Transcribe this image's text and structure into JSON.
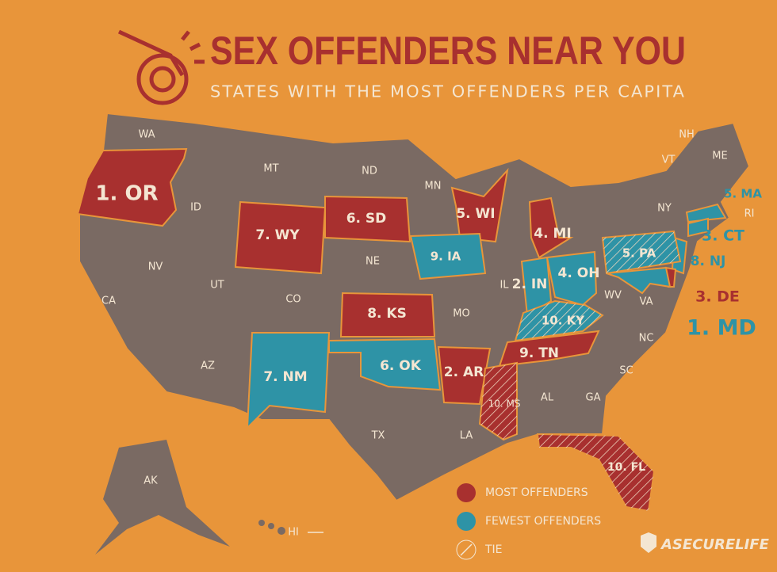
{
  "header": {
    "title": "SEX OFFENDERS NEAR YOU",
    "subtitle": "STATES WITH THE MOST OFFENDERS PER CAPITA"
  },
  "states": [
    {
      "label": "WA"
    },
    {
      "label": "1. OR",
      "color": "#a8302f"
    },
    {
      "label": "ID"
    },
    {
      "label": "MT"
    },
    {
      "label": "ND"
    },
    {
      "label": "MN"
    },
    {
      "label": "5. WI",
      "color": "#a8302f"
    },
    {
      "label": "4. MI",
      "color": "#a8302f"
    },
    {
      "label": "NY"
    },
    {
      "label": "VT"
    },
    {
      "label": "NH"
    },
    {
      "label": "ME"
    },
    {
      "label": "5. MA",
      "color": "#2e93a6"
    },
    {
      "label": "RI"
    },
    {
      "label": "3. CT",
      "color": "#2e93a6"
    },
    {
      "label": "8. NJ",
      "color": "#2e93a6"
    },
    {
      "label": "3. DE",
      "color": "#a8302f"
    },
    {
      "label": "1. MD",
      "color": "#2e93a6"
    },
    {
      "label": "5. PA",
      "color": "#2e93a6",
      "hatched": true
    },
    {
      "label": "4. OH",
      "color": "#2e93a6"
    },
    {
      "label": "2. IN",
      "color": "#2e93a6"
    },
    {
      "label": "9. IA",
      "color": "#2e93a6"
    },
    {
      "label": "7. WY",
      "color": "#a8302f"
    },
    {
      "label": "6. SD",
      "color": "#a8302f"
    },
    {
      "label": "NE"
    },
    {
      "label": "NV"
    },
    {
      "label": "CA"
    },
    {
      "label": "UT"
    },
    {
      "label": "CO"
    },
    {
      "label": "8. KS",
      "color": "#a8302f"
    },
    {
      "label": "MO"
    },
    {
      "label": "IL"
    },
    {
      "label": "10. KY",
      "color": "#2e93a6",
      "hatched": true
    },
    {
      "label": "WV"
    },
    {
      "label": "VA"
    },
    {
      "label": "NC"
    },
    {
      "label": "9. TN",
      "color": "#a8302f"
    },
    {
      "label": "6. OK",
      "color": "#2e93a6"
    },
    {
      "label": "2. AR",
      "color": "#a8302f"
    },
    {
      "label": "AZ"
    },
    {
      "label": "7. NM",
      "color": "#2e93a6"
    },
    {
      "label": "TX"
    },
    {
      "label": "LA"
    },
    {
      "label": "10. MS",
      "color": "#a8302f",
      "hatched": true
    },
    {
      "label": "AL"
    },
    {
      "label": "GA"
    },
    {
      "label": "SC"
    },
    {
      "label": "10. FL",
      "color": "#a8302f",
      "hatched": true
    },
    {
      "label": "AK"
    },
    {
      "label": "HI"
    }
  ],
  "legend": [
    {
      "label": "MOST OFFENDERS",
      "color": "#a8302f"
    },
    {
      "label": "FEWEST OFFENDERS",
      "color": "#2e93a6"
    },
    {
      "label": "TIE",
      "hatched": true
    }
  ],
  "brand": "ASECURELIFE"
}
